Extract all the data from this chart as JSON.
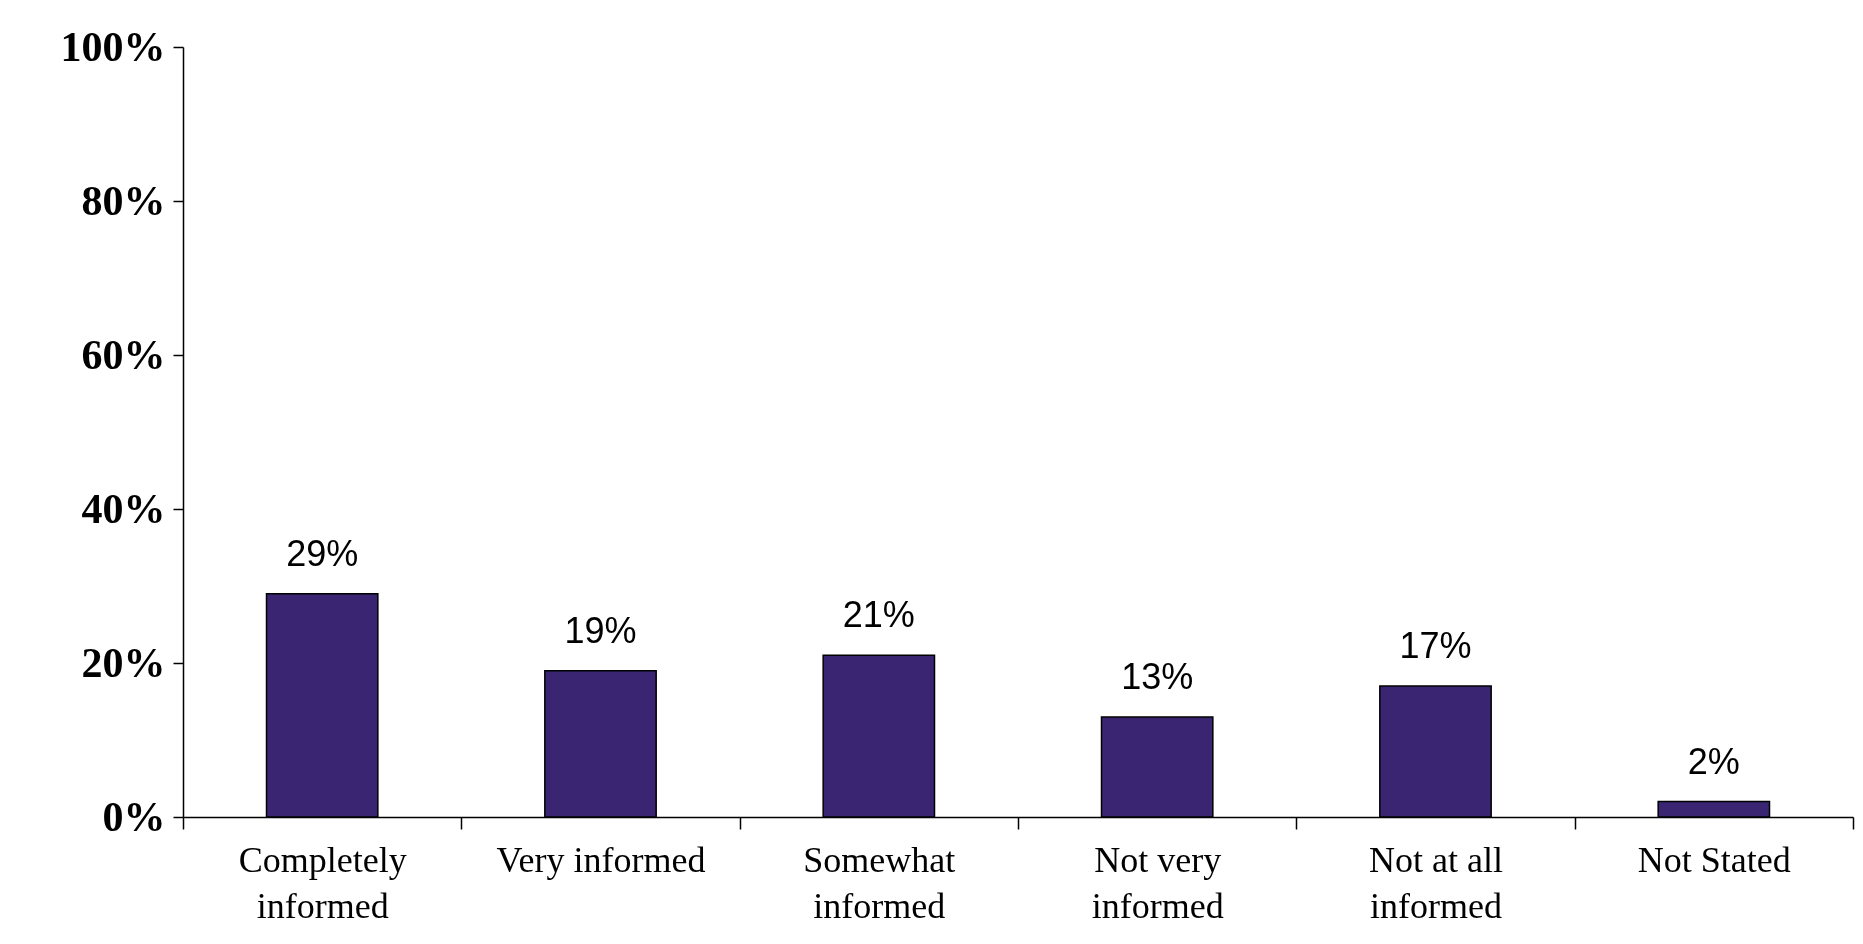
{
  "chart_data": {
    "type": "bar",
    "categories": [
      "Completely informed",
      "Very informed",
      "Somewhat informed",
      "Not very informed",
      "Not at all informed",
      "Not Stated"
    ],
    "values": [
      29,
      19,
      21,
      13,
      17,
      2
    ],
    "value_labels": [
      "29%",
      "19%",
      "21%",
      "13%",
      "17%",
      "2%"
    ],
    "color": "#3a2573",
    "ylim": [
      0,
      100
    ],
    "yticks": [
      {
        "value": 0,
        "label": "0%"
      },
      {
        "value": 20,
        "label": "20%"
      },
      {
        "value": 40,
        "label": "40%"
      },
      {
        "value": 60,
        "label": "60%"
      },
      {
        "value": 80,
        "label": "80%"
      },
      {
        "value": 100,
        "label": "100%"
      }
    ],
    "grid": false
  }
}
